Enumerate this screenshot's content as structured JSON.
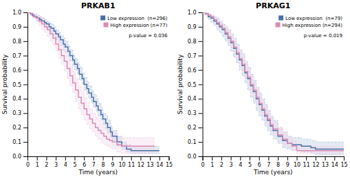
{
  "chart_data": [
    {
      "type": "line",
      "title": "PRKAB1",
      "x_label": "Time (years)",
      "y_label": "Survival probability",
      "xlim": [
        0,
        15
      ],
      "ylim": [
        0.0,
        1.0
      ],
      "xticks": [
        0,
        1,
        2,
        3,
        4,
        5,
        6,
        7,
        8,
        9,
        10,
        11,
        12,
        13,
        14,
        15
      ],
      "yticks": [
        {
          "value": 0.0,
          "label": "0.0"
        },
        0.1,
        0.2,
        0.3,
        0.4,
        0.5,
        0.6,
        0.7,
        0.8,
        0.9,
        {
          "value": 1.0,
          "label": "1.0"
        }
      ],
      "legend": "upper right",
      "annotations": [
        "p-value = 0.036"
      ],
      "series": [
        {
          "type": "area",
          "color": "#b0c4de",
          "line_style": "dashed",
          "x": [
            0,
            0.3,
            0.5,
            0.7,
            1.0,
            1.3,
            1.5,
            1.8,
            2.0,
            2.3,
            2.5,
            2.8,
            3.0,
            3.3,
            3.5,
            3.8,
            4.0,
            4.3,
            4.5,
            4.8,
            5.0,
            5.3,
            5.5,
            5.8,
            6.0,
            6.3,
            6.5,
            6.8,
            7.0,
            7.3,
            7.5,
            7.8,
            8.0,
            8.3,
            8.5,
            8.8,
            9.0,
            9.5,
            10.0,
            10.5,
            11.0,
            11.5,
            12.0,
            12.5,
            13.0,
            13.5,
            14.0
          ],
          "upper": [
            1.0,
            1.0,
            0.99,
            0.99,
            0.98,
            0.97,
            0.96,
            0.95,
            0.94,
            0.93,
            0.92,
            0.9,
            0.88,
            0.86,
            0.84,
            0.82,
            0.8,
            0.77,
            0.74,
            0.71,
            0.68,
            0.65,
            0.62,
            0.58,
            0.55,
            0.52,
            0.49,
            0.46,
            0.43,
            0.4,
            0.37,
            0.34,
            0.3,
            0.28,
            0.25,
            0.21,
            0.18,
            0.14,
            0.1,
            0.08,
            0.07,
            0.07,
            0.07,
            0.07,
            0.07,
            0.07,
            0.07
          ],
          "lower": [
            1.0,
            0.98,
            0.97,
            0.96,
            0.94,
            0.93,
            0.92,
            0.9,
            0.89,
            0.87,
            0.85,
            0.83,
            0.81,
            0.79,
            0.77,
            0.74,
            0.72,
            0.69,
            0.66,
            0.63,
            0.6,
            0.57,
            0.53,
            0.5,
            0.46,
            0.43,
            0.4,
            0.37,
            0.34,
            0.31,
            0.28,
            0.25,
            0.22,
            0.19,
            0.16,
            0.13,
            0.11,
            0.07,
            0.05,
            0.03,
            0.02,
            0.02,
            0.02,
            0.02,
            0.02,
            0.02,
            0.02
          ]
        },
        {
          "type": "area",
          "color": "#f2d0e8",
          "line_style": "dashed",
          "x": [
            0,
            0.3,
            0.6,
            0.9,
            1.2,
            1.5,
            1.8,
            2.1,
            2.4,
            2.7,
            3.0,
            3.3,
            3.6,
            3.9,
            4.2,
            4.5,
            4.8,
            5.1,
            5.4,
            5.7,
            6.0,
            6.3,
            6.6,
            6.9,
            7.2,
            7.5,
            7.8,
            8.1,
            8.4,
            8.7,
            9.0,
            9.5,
            10.0,
            10.5,
            11.0,
            11.5,
            12.0,
            12.5,
            13.0,
            13.5
          ],
          "upper": [
            1.0,
            1.0,
            0.99,
            0.98,
            0.97,
            0.96,
            0.94,
            0.92,
            0.9,
            0.87,
            0.84,
            0.8,
            0.77,
            0.73,
            0.68,
            0.64,
            0.59,
            0.54,
            0.49,
            0.45,
            0.41,
            0.37,
            0.33,
            0.3,
            0.27,
            0.25,
            0.23,
            0.2,
            0.18,
            0.17,
            0.16,
            0.14,
            0.13,
            0.13,
            0.13,
            0.13,
            0.13,
            0.13,
            0.13,
            0.13
          ],
          "lower": [
            1.0,
            0.98,
            0.96,
            0.94,
            0.91,
            0.88,
            0.86,
            0.83,
            0.8,
            0.77,
            0.73,
            0.68,
            0.64,
            0.59,
            0.54,
            0.49,
            0.44,
            0.38,
            0.33,
            0.29,
            0.25,
            0.22,
            0.19,
            0.17,
            0.14,
            0.12,
            0.1,
            0.08,
            0.07,
            0.06,
            0.05,
            0.03,
            0.02,
            0.02,
            0.02,
            0.02,
            0.02,
            0.02,
            0.02,
            0.02
          ]
        },
        {
          "type": "step",
          "name": "Low expression  (n=296)",
          "color": "#4a6fa5",
          "x": [
            0,
            0.3,
            0.5,
            0.7,
            1.0,
            1.3,
            1.5,
            1.8,
            2.0,
            2.3,
            2.5,
            2.8,
            3.0,
            3.3,
            3.5,
            3.8,
            4.0,
            4.3,
            4.5,
            4.8,
            5.0,
            5.3,
            5.5,
            5.8,
            6.0,
            6.3,
            6.5,
            6.8,
            7.0,
            7.3,
            7.5,
            7.8,
            8.0,
            8.3,
            8.5,
            8.8,
            9.0,
            9.5,
            10.0,
            10.5,
            11.0,
            11.5,
            12.0,
            12.5,
            13.0,
            13.5,
            14.0
          ],
          "values": [
            1.0,
            0.99,
            0.98,
            0.97,
            0.96,
            0.95,
            0.94,
            0.93,
            0.92,
            0.9,
            0.89,
            0.87,
            0.85,
            0.83,
            0.81,
            0.78,
            0.76,
            0.73,
            0.7,
            0.67,
            0.64,
            0.61,
            0.57,
            0.54,
            0.5,
            0.47,
            0.44,
            0.41,
            0.38,
            0.35,
            0.32,
            0.29,
            0.26,
            0.23,
            0.2,
            0.17,
            0.14,
            0.1,
            0.07,
            0.05,
            0.04,
            0.04,
            0.04,
            0.04,
            0.04,
            0.04,
            0.04
          ]
        },
        {
          "type": "step",
          "name": "High expression (n=77)",
          "color": "#d98cb3",
          "x": [
            0,
            0.3,
            0.6,
            0.9,
            1.2,
            1.5,
            1.8,
            2.1,
            2.4,
            2.7,
            3.0,
            3.3,
            3.6,
            3.9,
            4.2,
            4.5,
            4.8,
            5.1,
            5.4,
            5.7,
            6.0,
            6.3,
            6.6,
            6.9,
            7.2,
            7.5,
            7.8,
            8.1,
            8.4,
            8.7,
            9.0,
            9.5,
            10.0,
            10.5,
            11.0,
            11.5,
            12.0,
            12.5,
            13.0,
            13.5
          ],
          "values": [
            1.0,
            0.99,
            0.97,
            0.96,
            0.94,
            0.92,
            0.9,
            0.88,
            0.85,
            0.82,
            0.78,
            0.74,
            0.7,
            0.66,
            0.61,
            0.56,
            0.51,
            0.46,
            0.41,
            0.37,
            0.33,
            0.29,
            0.26,
            0.23,
            0.2,
            0.18,
            0.16,
            0.14,
            0.12,
            0.11,
            0.1,
            0.08,
            0.07,
            0.07,
            0.07,
            0.07,
            0.07,
            0.07,
            0.07,
            0.07
          ]
        }
      ]
    },
    {
      "type": "line",
      "title": "PRKAG1",
      "x_label": "Time (years)",
      "y_label": "Survival probability",
      "xlim": [
        0,
        15
      ],
      "ylim": [
        0.0,
        1.0
      ],
      "xticks": [
        0,
        1,
        2,
        3,
        4,
        5,
        6,
        7,
        8,
        9,
        10,
        11,
        12,
        13,
        14,
        15
      ],
      "yticks": [
        {
          "value": 0.0,
          "label": "0.0"
        },
        0.1,
        0.2,
        0.3,
        0.4,
        0.5,
        0.6,
        0.7,
        0.8,
        0.9,
        {
          "value": 1.0,
          "label": "1.0"
        }
      ],
      "legend": "upper right",
      "annotations": [
        "p-value = 0.019"
      ],
      "series": [
        {
          "type": "area",
          "color": "#b0c4de",
          "line_style": "dashed",
          "x": [
            0,
            0.3,
            0.6,
            0.9,
            1.2,
            1.5,
            1.8,
            2.1,
            2.4,
            2.7,
            3.0,
            3.3,
            3.6,
            3.9,
            4.2,
            4.5,
            4.8,
            5.1,
            5.4,
            5.7,
            6.0,
            6.3,
            6.6,
            6.9,
            7.2,
            7.5,
            8.0,
            8.5,
            9.0,
            9.5,
            10.0,
            10.5,
            11.0,
            11.5,
            12.0,
            12.5,
            13.0,
            13.5,
            14.0,
            14.5,
            15.0
          ],
          "upper": [
            1.0,
            1.0,
            0.99,
            0.98,
            0.97,
            0.96,
            0.94,
            0.92,
            0.9,
            0.88,
            0.85,
            0.82,
            0.78,
            0.74,
            0.71,
            0.66,
            0.62,
            0.57,
            0.53,
            0.48,
            0.44,
            0.4,
            0.36,
            0.32,
            0.28,
            0.25,
            0.2,
            0.17,
            0.14,
            0.13,
            0.13,
            0.12,
            0.12,
            0.11,
            0.1,
            0.1,
            0.1,
            0.1,
            0.1,
            0.1,
            0.1
          ],
          "lower": [
            1.0,
            0.98,
            0.95,
            0.93,
            0.91,
            0.88,
            0.86,
            0.83,
            0.8,
            0.77,
            0.73,
            0.69,
            0.65,
            0.6,
            0.56,
            0.51,
            0.46,
            0.41,
            0.37,
            0.32,
            0.28,
            0.25,
            0.21,
            0.18,
            0.15,
            0.12,
            0.09,
            0.06,
            0.05,
            0.04,
            0.04,
            0.03,
            0.03,
            0.02,
            0.01,
            0.01,
            0.01,
            0.01,
            0.01,
            0.01,
            0.01
          ]
        },
        {
          "type": "area",
          "color": "#f2d0e8",
          "line_style": "dashed",
          "x": [
            0,
            0.3,
            0.6,
            0.9,
            1.2,
            1.5,
            1.8,
            2.1,
            2.4,
            2.7,
            3.0,
            3.3,
            3.6,
            3.9,
            4.2,
            4.5,
            4.8,
            5.1,
            5.4,
            5.7,
            6.0,
            6.3,
            6.6,
            6.9,
            7.2,
            7.5,
            8.0,
            8.5,
            9.0,
            9.5,
            10.0,
            10.5,
            11.0,
            11.5,
            12.0,
            12.5,
            13.0,
            13.5,
            14.0,
            14.5,
            15.0
          ],
          "upper": [
            1.0,
            1.0,
            0.99,
            0.98,
            0.97,
            0.95,
            0.93,
            0.91,
            0.89,
            0.87,
            0.84,
            0.8,
            0.76,
            0.73,
            0.69,
            0.65,
            0.61,
            0.56,
            0.52,
            0.47,
            0.43,
            0.39,
            0.35,
            0.31,
            0.28,
            0.24,
            0.2,
            0.17,
            0.13,
            0.11,
            0.07,
            0.07,
            0.07,
            0.07,
            0.07,
            0.07,
            0.07,
            0.07,
            0.07,
            0.07,
            0.07
          ],
          "lower": [
            1.0,
            0.98,
            0.97,
            0.96,
            0.94,
            0.91,
            0.89,
            0.87,
            0.84,
            0.8,
            0.76,
            0.72,
            0.68,
            0.64,
            0.59,
            0.54,
            0.5,
            0.45,
            0.41,
            0.36,
            0.32,
            0.28,
            0.24,
            0.21,
            0.18,
            0.15,
            0.11,
            0.08,
            0.06,
            0.04,
            0.02,
            0.02,
            0.02,
            0.02,
            0.02,
            0.02,
            0.02,
            0.02,
            0.02,
            0.02,
            0.02
          ]
        },
        {
          "type": "step",
          "name": "Low expression  (n=79)",
          "color": "#4a6fa5",
          "x": [
            0,
            0.3,
            0.6,
            0.9,
            1.2,
            1.5,
            1.8,
            2.1,
            2.4,
            2.7,
            3.0,
            3.3,
            3.6,
            3.9,
            4.2,
            4.5,
            4.8,
            5.1,
            5.4,
            5.7,
            6.0,
            6.3,
            6.6,
            6.9,
            7.2,
            7.5,
            8.0,
            8.5,
            9.0,
            9.5,
            10.0,
            10.5,
            11.0,
            11.5,
            12.0,
            12.5,
            13.0,
            13.5,
            14.0,
            14.5,
            15.0
          ],
          "values": [
            1.0,
            0.99,
            0.97,
            0.96,
            0.94,
            0.92,
            0.9,
            0.88,
            0.85,
            0.82,
            0.79,
            0.75,
            0.71,
            0.67,
            0.63,
            0.58,
            0.54,
            0.49,
            0.45,
            0.4,
            0.36,
            0.32,
            0.28,
            0.25,
            0.21,
            0.18,
            0.14,
            0.11,
            0.09,
            0.08,
            0.08,
            0.07,
            0.07,
            0.06,
            0.05,
            0.05,
            0.05,
            0.05,
            0.05,
            0.05,
            0.05
          ]
        },
        {
          "type": "step",
          "name": "High expression (n=294)",
          "color": "#d98cb3",
          "x": [
            0,
            0.3,
            0.6,
            0.9,
            1.2,
            1.5,
            1.8,
            2.1,
            2.4,
            2.7,
            3.0,
            3.3,
            3.6,
            3.9,
            4.2,
            4.5,
            4.8,
            5.1,
            5.4,
            5.7,
            6.0,
            6.3,
            6.6,
            6.9,
            7.2,
            7.5,
            8.0,
            8.5,
            9.0,
            9.5,
            10.0,
            10.5,
            11.0,
            11.5,
            12.0,
            12.5,
            13.0,
            13.5,
            14.0,
            14.5,
            15.0
          ],
          "values": [
            1.0,
            0.99,
            0.98,
            0.97,
            0.95,
            0.93,
            0.91,
            0.89,
            0.86,
            0.83,
            0.8,
            0.76,
            0.72,
            0.68,
            0.64,
            0.59,
            0.55,
            0.5,
            0.46,
            0.41,
            0.37,
            0.33,
            0.29,
            0.26,
            0.22,
            0.19,
            0.15,
            0.12,
            0.09,
            0.07,
            0.04,
            0.04,
            0.04,
            0.04,
            0.04,
            0.04,
            0.04,
            0.04,
            0.04,
            0.04,
            0.04
          ]
        }
      ]
    }
  ]
}
